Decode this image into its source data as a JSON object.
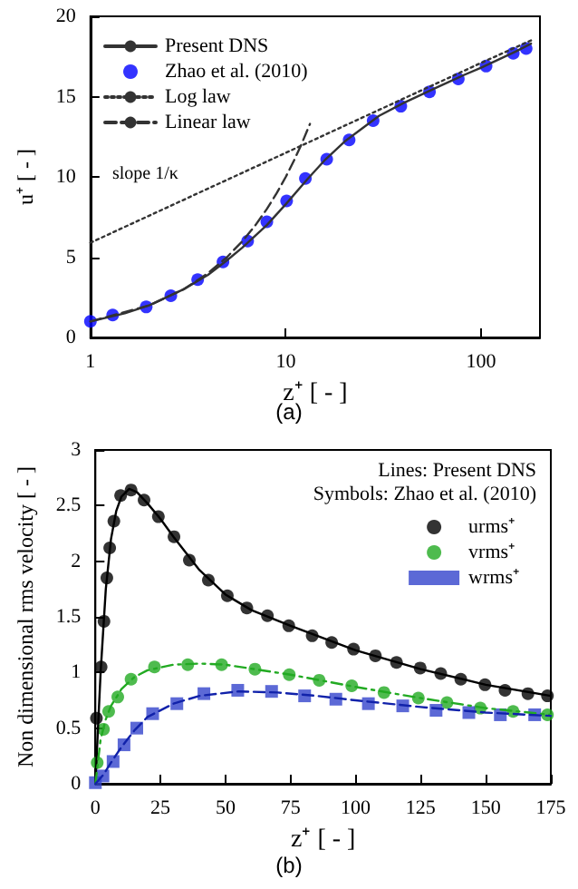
{
  "chart_data": [
    {
      "type": "line",
      "title": "(a)",
      "xlabel": "z⁺ [ - ]",
      "ylabel": "u⁺ [ - ]",
      "log": "x",
      "xlim": [
        1,
        200
      ],
      "xticks": [
        1,
        10,
        100
      ],
      "ylim": [
        0,
        20
      ],
      "yticks": [
        0,
        5,
        10,
        15,
        20
      ],
      "grid": false,
      "legend": "top left",
      "annotations": [
        "slope 1/κ"
      ],
      "series": [
        {
          "name": "Present DNS",
          "color": "#333333",
          "marker": "none",
          "line_style": "solid",
          "x": [
            1,
            1.5,
            2,
            3,
            4,
            5,
            6,
            8,
            10,
            13,
            16,
            20,
            30,
            40,
            60,
            80,
            100,
            150,
            180
          ],
          "values": [
            1.0,
            1.5,
            2.0,
            3.0,
            3.9,
            4.8,
            5.6,
            7.0,
            8.3,
            9.9,
            11.1,
            12.2,
            13.8,
            14.6,
            15.6,
            16.3,
            16.8,
            17.8,
            18.3
          ]
        },
        {
          "name": "Zhao et al. (2010)",
          "type": "scatter",
          "color": "#0000ff",
          "marker": "circle",
          "x": [
            1,
            1.3,
            1.93,
            2.58,
            3.54,
            4.77,
            6.38,
            8.0,
            10.1,
            12.6,
            16.2,
            21.1,
            28,
            38.8,
            54.4,
            76.4,
            106,
            146,
            170
          ],
          "values": [
            1.0,
            1.4,
            1.9,
            2.6,
            3.6,
            4.7,
            6.0,
            7.2,
            8.5,
            9.9,
            11.1,
            12.3,
            13.5,
            14.4,
            15.3,
            16.1,
            16.9,
            17.7,
            18.0
          ]
        },
        {
          "name": "Log law",
          "color": "#333333",
          "marker": "none",
          "line_style": "dotted",
          "x": [
            1,
            10,
            100,
            180
          ],
          "values": [
            5.9,
            11.5,
            17.1,
            18.5
          ]
        },
        {
          "name": "Linear law",
          "color": "#333333",
          "marker": "none",
          "line_style": "dashed",
          "x": [
            1,
            2,
            3,
            4,
            5,
            6,
            7,
            8,
            9,
            10,
            11,
            12,
            13.3
          ],
          "values": [
            1,
            2,
            3,
            4,
            5,
            6,
            7,
            8,
            9,
            10,
            11,
            12,
            13.3
          ]
        }
      ]
    },
    {
      "type": "line",
      "title": "(b)",
      "xlabel": "z⁺ [ - ]",
      "ylabel": "Non dimensional rms velocity [ - ]",
      "xlim": [
        0,
        175
      ],
      "xticks": [
        0,
        25,
        50,
        75,
        100,
        125,
        150,
        175
      ],
      "ylim": [
        0,
        3
      ],
      "yticks": [
        0,
        0.5,
        1,
        1.5,
        2,
        2.5,
        3
      ],
      "grid": false,
      "legend": "top right",
      "annotations": [
        "Lines: Present DNS",
        "Symbols: Zhao et al. (2010)"
      ],
      "series": [
        {
          "name": "urms⁺",
          "type": "scatter",
          "color": "#000000",
          "marker": "circle",
          "x": [
            0.4,
            2.2,
            3.3,
            4.4,
            5.5,
            7.1,
            9.7,
            13.7,
            18.7,
            24.2,
            30.2,
            36.1,
            43.4,
            50.7,
            58.2,
            66.1,
            74.3,
            83.3,
            90.8,
            99.2,
            107.6,
            115.7,
            124.8,
            132.7,
            140.4,
            149.7,
            157.4,
            166.2,
            173.7
          ],
          "values": [
            0.59,
            1.05,
            1.46,
            1.85,
            2.12,
            2.36,
            2.59,
            2.64,
            2.55,
            2.4,
            2.22,
            2.01,
            1.83,
            1.69,
            1.58,
            1.51,
            1.42,
            1.33,
            1.27,
            1.21,
            1.15,
            1.09,
            1.04,
            0.99,
            0.94,
            0.89,
            0.84,
            0.81,
            0.79
          ]
        },
        {
          "color": "#000000",
          "marker": "none",
          "line_style": "solid",
          "x": [
            0,
            2,
            4,
            6,
            8,
            10,
            13,
            16,
            20,
            25,
            30,
            40,
            50,
            60,
            75,
            100,
            125,
            150,
            175
          ],
          "values": [
            0,
            1.0,
            1.75,
            2.2,
            2.45,
            2.58,
            2.65,
            2.62,
            2.52,
            2.38,
            2.22,
            1.92,
            1.7,
            1.56,
            1.42,
            1.2,
            1.03,
            0.89,
            0.79
          ]
        },
        {
          "name": "vrms⁺",
          "type": "scatter",
          "color": "#22aa22",
          "marker": "circle",
          "x": [
            0.7,
            3.1,
            5.1,
            8.6,
            13.7,
            22.7,
            35.5,
            48.5,
            61.3,
            74.5,
            86,
            98.5,
            110.9,
            124.1,
            135.1,
            147.9,
            160.5,
            173.7
          ],
          "values": [
            0.19,
            0.49,
            0.65,
            0.78,
            0.94,
            1.05,
            1.07,
            1.07,
            1.03,
            0.98,
            0.93,
            0.88,
            0.82,
            0.77,
            0.73,
            0.68,
            0.65,
            0.62
          ]
        },
        {
          "color": "#22aa22",
          "marker": "none",
          "line_style": "dashdot",
          "x": [
            0,
            2,
            4,
            6,
            10,
            15,
            20,
            30,
            40,
            50,
            75,
            100,
            125,
            150,
            175
          ],
          "values": [
            0,
            0.4,
            0.58,
            0.7,
            0.85,
            0.96,
            1.02,
            1.07,
            1.08,
            1.07,
            0.98,
            0.87,
            0.77,
            0.68,
            0.62
          ]
        },
        {
          "name": "wrms⁺",
          "type": "scatter",
          "color": "#3344cc",
          "marker": "square",
          "x": [
            0,
            2.9,
            6.8,
            11,
            15.9,
            22,
            31.3,
            41.7,
            54.7,
            67.7,
            80.4,
            92.4,
            104.9,
            118.1,
            130.9,
            143.5,
            155.6,
            168.8
          ],
          "values": [
            0.01,
            0.07,
            0.2,
            0.35,
            0.5,
            0.63,
            0.72,
            0.81,
            0.84,
            0.83,
            0.79,
            0.76,
            0.72,
            0.7,
            0.66,
            0.64,
            0.62,
            0.62
          ]
        },
        {
          "color": "#1122aa",
          "marker": "none",
          "line_style": "dashed",
          "x": [
            0,
            3,
            6,
            10,
            15,
            20,
            30,
            40,
            55,
            70,
            85,
            100,
            125,
            150,
            175
          ],
          "values": [
            0,
            0.08,
            0.19,
            0.33,
            0.48,
            0.6,
            0.72,
            0.79,
            0.83,
            0.82,
            0.79,
            0.75,
            0.69,
            0.64,
            0.61
          ]
        }
      ]
    }
  ]
}
